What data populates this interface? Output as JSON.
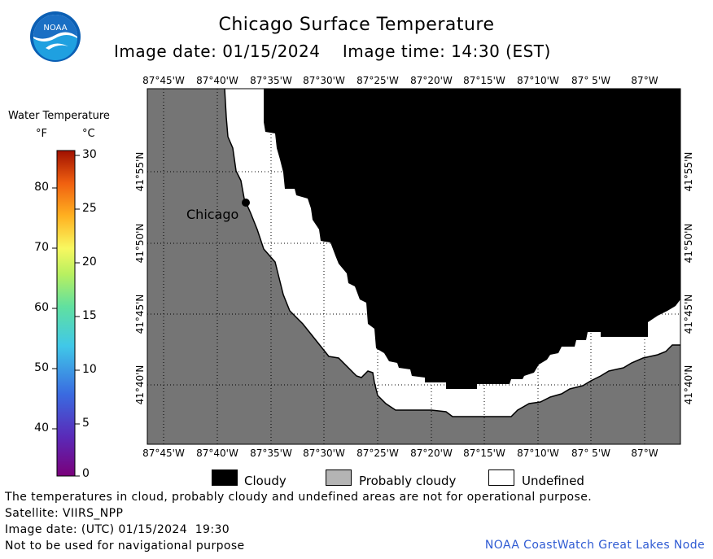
{
  "header": {
    "title": "Chicago Surface Temperature",
    "image_date_label": "Image date: 01/15/2024",
    "image_time_label": "Image time: 14:30 (EST)"
  },
  "logo": {
    "text": "NOAA",
    "icon": "noaa-logo-icon",
    "colors": {
      "blue": "#0b5fb4",
      "light": "#1fa0e0"
    }
  },
  "map": {
    "place_label": "Chicago",
    "lon_labels": [
      "87°45'W",
      "87°40'W",
      "87°35'W",
      "87°30'W",
      "87°25'W",
      "87°20'W",
      "87°15'W",
      "87°10'W",
      "87° 5'W",
      "87°W"
    ],
    "lat_labels": [
      "41°55'N",
      "41°50'N",
      "41°45'N",
      "41°40'N"
    ],
    "colors": {
      "land": "#757575",
      "cloudy": "#000000",
      "undefined": "#ffffff",
      "probably_cloudy": "#b4b4b4"
    }
  },
  "legend": {
    "title": "Water Temperature",
    "unit_f": "°F",
    "unit_c": "°C",
    "f_ticks": [
      "80",
      "70",
      "60",
      "50",
      "40"
    ],
    "c_ticks": [
      "30",
      "25",
      "20",
      "15",
      "10",
      "5",
      "0"
    ]
  },
  "key": {
    "cloudy": "Cloudy",
    "probably_cloudy": "Probably cloudy",
    "undefined": "Undefined"
  },
  "footer": {
    "line1": "The temperatures in cloud, probably cloudy and undefined areas are not for operational purpose.",
    "line2": "Satellite: VIIRS_NPP",
    "line3": "Image date: (UTC) 01/15/2024  19:30",
    "line4": "Not to be used for navigational purpose",
    "credit": "NOAA CoastWatch Great Lakes Node"
  }
}
